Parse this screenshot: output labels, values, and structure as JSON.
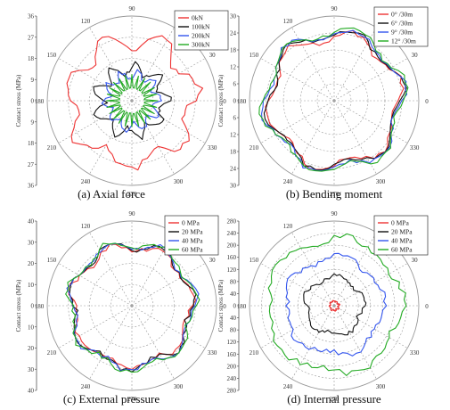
{
  "chart_data": [
    {
      "type": "polar",
      "caption": "(a) Axial force",
      "ylabel": "Contact stress (MPa)",
      "angle_ticks": [
        "0",
        "30",
        "60",
        "90",
        "120",
        "150",
        "180",
        "210",
        "240",
        "270",
        "300",
        "330"
      ],
      "radial_ticks_upper": [
        "36",
        "27",
        "18",
        "9",
        "0"
      ],
      "radial_ticks_lower": [
        "9",
        "18",
        "27",
        "36"
      ],
      "rmax": 36,
      "legend": [
        "0kN",
        "100kN",
        "200kN",
        "300kN"
      ],
      "colors": [
        "#ee3333",
        "#111111",
        "#3355ee",
        "#22aa22"
      ],
      "series": [
        {
          "name": "0kN",
          "mean": 26,
          "amp": 3.5,
          "freq": 7,
          "phase": 0.3,
          "jitter": 1.5
        },
        {
          "name": "100kN",
          "mean": 14,
          "amp": 2.5,
          "freq": 9,
          "phase": 1.1,
          "jitter": 1.2
        },
        {
          "name": "200kN",
          "mean": 11,
          "amp": 2,
          "freq": 10,
          "phase": 0.7,
          "jitter": 1.0
        },
        {
          "name": "300kN",
          "mean": 7,
          "amp": 4,
          "freq": 12,
          "phase": 0.0,
          "jitter": 0.4
        }
      ]
    },
    {
      "type": "polar",
      "caption": "(b) Bending moment",
      "ylabel": "Contact stress (MPa)",
      "angle_ticks": [
        "0",
        "30",
        "60",
        "90",
        "120",
        "150",
        "180",
        "210",
        "240",
        "270",
        "300",
        "330"
      ],
      "radial_ticks_upper": [
        "30",
        "24",
        "18",
        "12",
        "6",
        "0"
      ],
      "radial_ticks_lower": [
        "6",
        "12",
        "18",
        "24",
        "30"
      ],
      "rmax": 30,
      "legend": [
        "0° /30m",
        "6° /30m",
        "9° /30m",
        "12° /30m"
      ],
      "colors": [
        "#ee3333",
        "#111111",
        "#3355ee",
        "#22aa22"
      ],
      "series": [
        {
          "name": "0° /30m",
          "mean": 23,
          "amp": 2,
          "freq": 6,
          "phase": 0.2,
          "jitter": 0.8
        },
        {
          "name": "6° /30m",
          "mean": 23.5,
          "amp": 2,
          "freq": 6,
          "phase": 0.25,
          "jitter": 0.8
        },
        {
          "name": "9° /30m",
          "mean": 24,
          "amp": 2,
          "freq": 6,
          "phase": 0.3,
          "jitter": 0.8
        },
        {
          "name": "12° /30m",
          "mean": 24.5,
          "amp": 2,
          "freq": 6,
          "phase": 0.35,
          "jitter": 0.8
        }
      ]
    },
    {
      "type": "polar",
      "caption": "(c) External pressure",
      "ylabel": "Contact stress (MPa)",
      "angle_ticks": [
        "0",
        "30",
        "60",
        "90",
        "120",
        "150",
        "180",
        "210",
        "240",
        "270",
        "300",
        "330"
      ],
      "radial_ticks_upper": [
        "40",
        "30",
        "20",
        "10",
        "0"
      ],
      "radial_ticks_lower": [
        "10",
        "20",
        "30",
        "40"
      ],
      "rmax": 40,
      "legend": [
        "0 MPa",
        "20 MPa",
        "40 MPa",
        "60 MPa"
      ],
      "colors": [
        "#ee3333",
        "#111111",
        "#3355ee",
        "#22aa22"
      ],
      "series": [
        {
          "name": "0 MPa",
          "mean": 28,
          "amp": 2,
          "freq": 7,
          "phase": 0.4,
          "jitter": 1.2
        },
        {
          "name": "20 MPa",
          "mean": 28.5,
          "amp": 2,
          "freq": 7,
          "phase": 0.45,
          "jitter": 1.2
        },
        {
          "name": "40 MPa",
          "mean": 29,
          "amp": 2,
          "freq": 7,
          "phase": 0.5,
          "jitter": 1.2
        },
        {
          "name": "60 MPa",
          "mean": 29.5,
          "amp": 2,
          "freq": 7,
          "phase": 0.55,
          "jitter": 1.2
        }
      ]
    },
    {
      "type": "polar",
      "caption": "(d) Internal pressure",
      "ylabel": "Contact stress (MPa)",
      "angle_ticks": [
        "0",
        "30",
        "60",
        "90",
        "120",
        "150",
        "180",
        "210",
        "240",
        "270",
        "300",
        "330"
      ],
      "radial_ticks_upper": [
        "280",
        "240",
        "200",
        "160",
        "120",
        "80",
        "40",
        "0"
      ],
      "radial_ticks_lower": [
        "40",
        "80",
        "120",
        "160",
        "200",
        "240",
        "280"
      ],
      "rmax": 280,
      "legend": [
        "0 MPa",
        "20 MPa",
        "40 MPa",
        "60 MPa"
      ],
      "colors": [
        "#ee3333",
        "#111111",
        "#3355ee",
        "#22aa22"
      ],
      "series": [
        {
          "name": "0 MPa",
          "mean": 15,
          "amp": 2,
          "freq": 8,
          "phase": 0.0,
          "jitter": 3
        },
        {
          "name": "20 MPa",
          "mean": 95,
          "amp": 8,
          "freq": 5,
          "phase": 0.6,
          "jitter": 6
        },
        {
          "name": "40 MPa",
          "mean": 160,
          "amp": 10,
          "freq": 5,
          "phase": 0.9,
          "jitter": 8
        },
        {
          "name": "60 MPa",
          "mean": 220,
          "amp": 12,
          "freq": 5,
          "phase": 1.2,
          "jitter": 10
        }
      ]
    }
  ]
}
